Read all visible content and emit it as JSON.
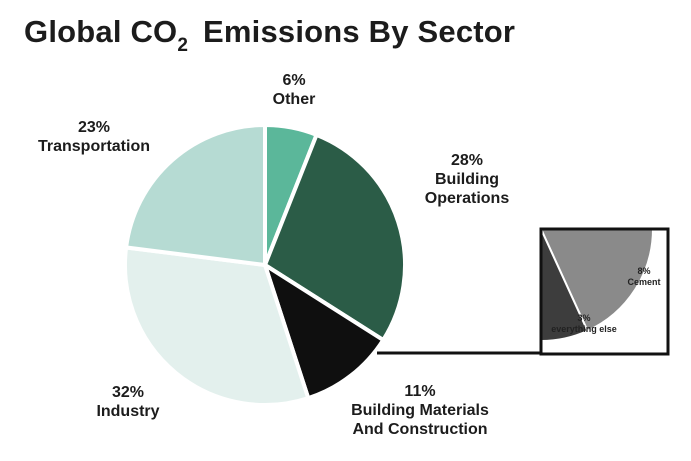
{
  "title": {
    "prefix": "Global CO",
    "subscript": "2",
    "suffix": "Emissions By Sector"
  },
  "chart_data": {
    "type": "pie",
    "slices": [
      {
        "label": "Other",
        "value": 6,
        "pct": "6%",
        "color": "#5bb79a"
      },
      {
        "label": "Building Operations",
        "label_lines": [
          "Building",
          "Operations"
        ],
        "value": 28,
        "pct": "28%",
        "color": "#2b5c47"
      },
      {
        "label": "Building Materials And Construction",
        "label_lines": [
          "Building Materials",
          "And Construction"
        ],
        "value": 11,
        "pct": "11%",
        "color": "#0f0f0f"
      },
      {
        "label": "Industry",
        "value": 32,
        "pct": "32%",
        "color": "#e3f0ed"
      },
      {
        "label": "Transportation",
        "value": 23,
        "pct": "23%",
        "color": "#b6dbd3"
      }
    ],
    "inset": {
      "breakdown_of": "Building Materials And Construction",
      "slices": [
        {
          "label": "Cement",
          "value": 8,
          "pct": "8%",
          "color": "#8a8a8a"
        },
        {
          "label": "everything else",
          "value": 3,
          "pct": "3%",
          "color": "#3d3d3d"
        }
      ]
    }
  }
}
